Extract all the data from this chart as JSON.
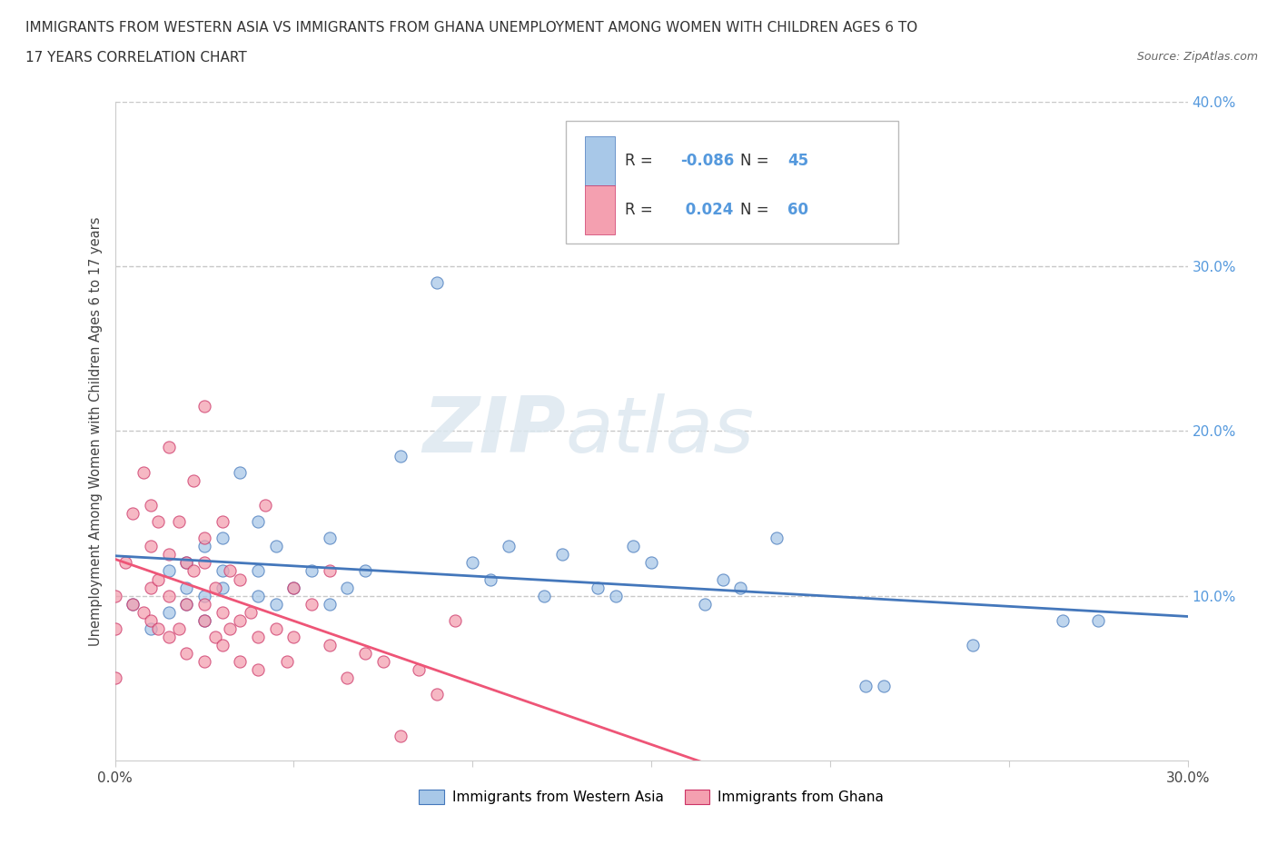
{
  "title_line1": "IMMIGRANTS FROM WESTERN ASIA VS IMMIGRANTS FROM GHANA UNEMPLOYMENT AMONG WOMEN WITH CHILDREN AGES 6 TO",
  "title_line2": "17 YEARS CORRELATION CHART",
  "source_text": "Source: ZipAtlas.com",
  "ylabel": "Unemployment Among Women with Children Ages 6 to 17 years",
  "xlim": [
    0.0,
    0.3
  ],
  "ylim": [
    0.0,
    0.4
  ],
  "color_western_asia": "#a8c8e8",
  "color_ghana": "#f4a0b0",
  "trendline_color_western_asia": "#4477bb",
  "trendline_color_ghana": "#ee5577",
  "legend_label_1": "Immigrants from Western Asia",
  "legend_label_2": "Immigrants from Ghana",
  "R1": -0.086,
  "N1": 45,
  "R2": 0.024,
  "N2": 60,
  "watermark_zip": "ZIP",
  "watermark_atlas": "atlas",
  "background_color": "#ffffff",
  "grid_color": "#c8c8c8",
  "right_tick_color": "#5599dd",
  "western_asia_x": [
    0.005,
    0.01,
    0.015,
    0.015,
    0.02,
    0.02,
    0.02,
    0.025,
    0.025,
    0.025,
    0.03,
    0.03,
    0.03,
    0.035,
    0.04,
    0.04,
    0.04,
    0.045,
    0.045,
    0.05,
    0.055,
    0.06,
    0.06,
    0.065,
    0.07,
    0.08,
    0.09,
    0.1,
    0.105,
    0.11,
    0.12,
    0.125,
    0.135,
    0.14,
    0.145,
    0.15,
    0.165,
    0.17,
    0.175,
    0.185,
    0.21,
    0.215,
    0.24,
    0.265,
    0.275
  ],
  "western_asia_y": [
    0.095,
    0.08,
    0.09,
    0.115,
    0.095,
    0.105,
    0.12,
    0.085,
    0.1,
    0.13,
    0.105,
    0.115,
    0.135,
    0.175,
    0.1,
    0.115,
    0.145,
    0.095,
    0.13,
    0.105,
    0.115,
    0.095,
    0.135,
    0.105,
    0.115,
    0.185,
    0.29,
    0.12,
    0.11,
    0.13,
    0.1,
    0.125,
    0.105,
    0.1,
    0.13,
    0.12,
    0.095,
    0.11,
    0.105,
    0.135,
    0.045,
    0.045,
    0.07,
    0.085,
    0.085
  ],
  "ghana_x": [
    0.0,
    0.0,
    0.0,
    0.003,
    0.005,
    0.005,
    0.008,
    0.008,
    0.01,
    0.01,
    0.01,
    0.01,
    0.012,
    0.012,
    0.012,
    0.015,
    0.015,
    0.015,
    0.015,
    0.018,
    0.018,
    0.02,
    0.02,
    0.02,
    0.022,
    0.022,
    0.025,
    0.025,
    0.025,
    0.025,
    0.025,
    0.025,
    0.028,
    0.028,
    0.03,
    0.03,
    0.03,
    0.032,
    0.032,
    0.035,
    0.035,
    0.035,
    0.038,
    0.04,
    0.04,
    0.042,
    0.045,
    0.048,
    0.05,
    0.05,
    0.055,
    0.06,
    0.06,
    0.065,
    0.07,
    0.075,
    0.08,
    0.085,
    0.09,
    0.095
  ],
  "ghana_y": [
    0.05,
    0.08,
    0.1,
    0.12,
    0.095,
    0.15,
    0.09,
    0.175,
    0.085,
    0.105,
    0.13,
    0.155,
    0.08,
    0.11,
    0.145,
    0.075,
    0.1,
    0.125,
    0.19,
    0.08,
    0.145,
    0.065,
    0.095,
    0.12,
    0.115,
    0.17,
    0.06,
    0.085,
    0.095,
    0.12,
    0.135,
    0.215,
    0.075,
    0.105,
    0.07,
    0.09,
    0.145,
    0.08,
    0.115,
    0.06,
    0.085,
    0.11,
    0.09,
    0.055,
    0.075,
    0.155,
    0.08,
    0.06,
    0.075,
    0.105,
    0.095,
    0.07,
    0.115,
    0.05,
    0.065,
    0.06,
    0.015,
    0.055,
    0.04,
    0.085
  ]
}
